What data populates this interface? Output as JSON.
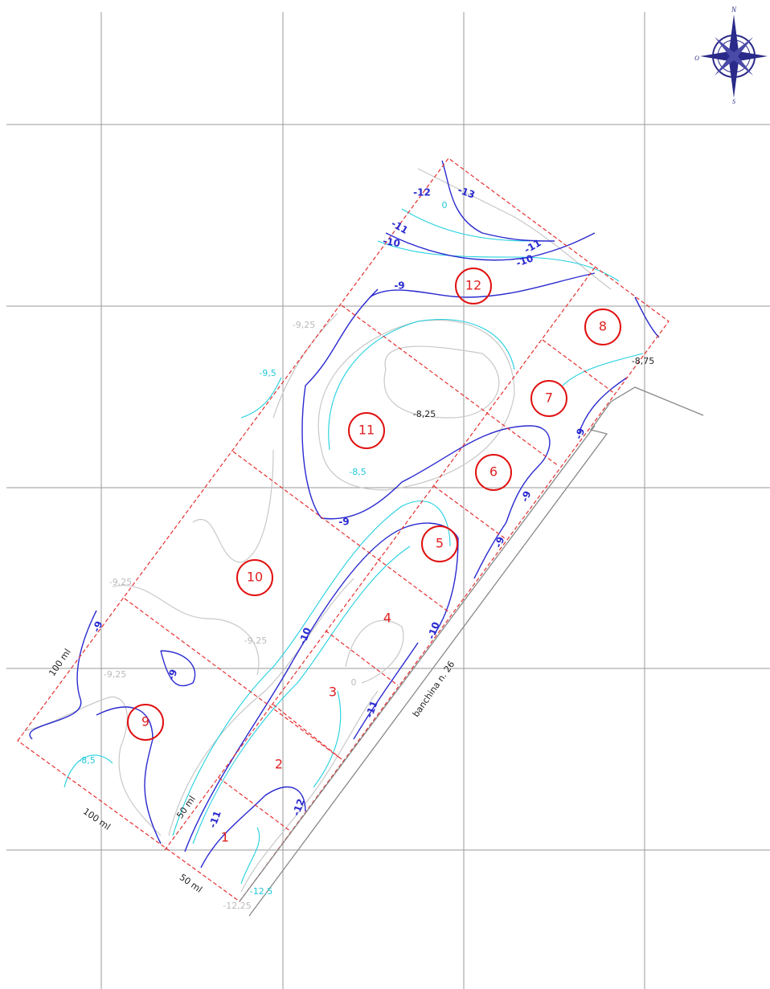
{
  "compass": {
    "north": "N",
    "west": "O",
    "south": "S"
  },
  "zones": [
    "1",
    "2",
    "3",
    "4",
    "5",
    "6",
    "7",
    "8",
    "9",
    "10",
    "11",
    "12"
  ],
  "contour_labels": [
    "-12",
    "-13",
    "0",
    "-11",
    "-10",
    "-11",
    "-10",
    "-9",
    "-9,25",
    "-9,5",
    "-8,75",
    "-8,25",
    "-8,5",
    "-9",
    "-9",
    "-9",
    "-9",
    "-10",
    "-10",
    "-11",
    "0",
    "-9,25",
    "-9,25",
    "-9",
    "-9,25",
    "-9",
    "-8,5",
    "-11",
    "-12",
    "-12,5",
    "-12,25"
  ],
  "dimensions": [
    "100 ml",
    "100 ml",
    "50 ml",
    "50 ml"
  ],
  "quay": "banchina n. 26"
}
